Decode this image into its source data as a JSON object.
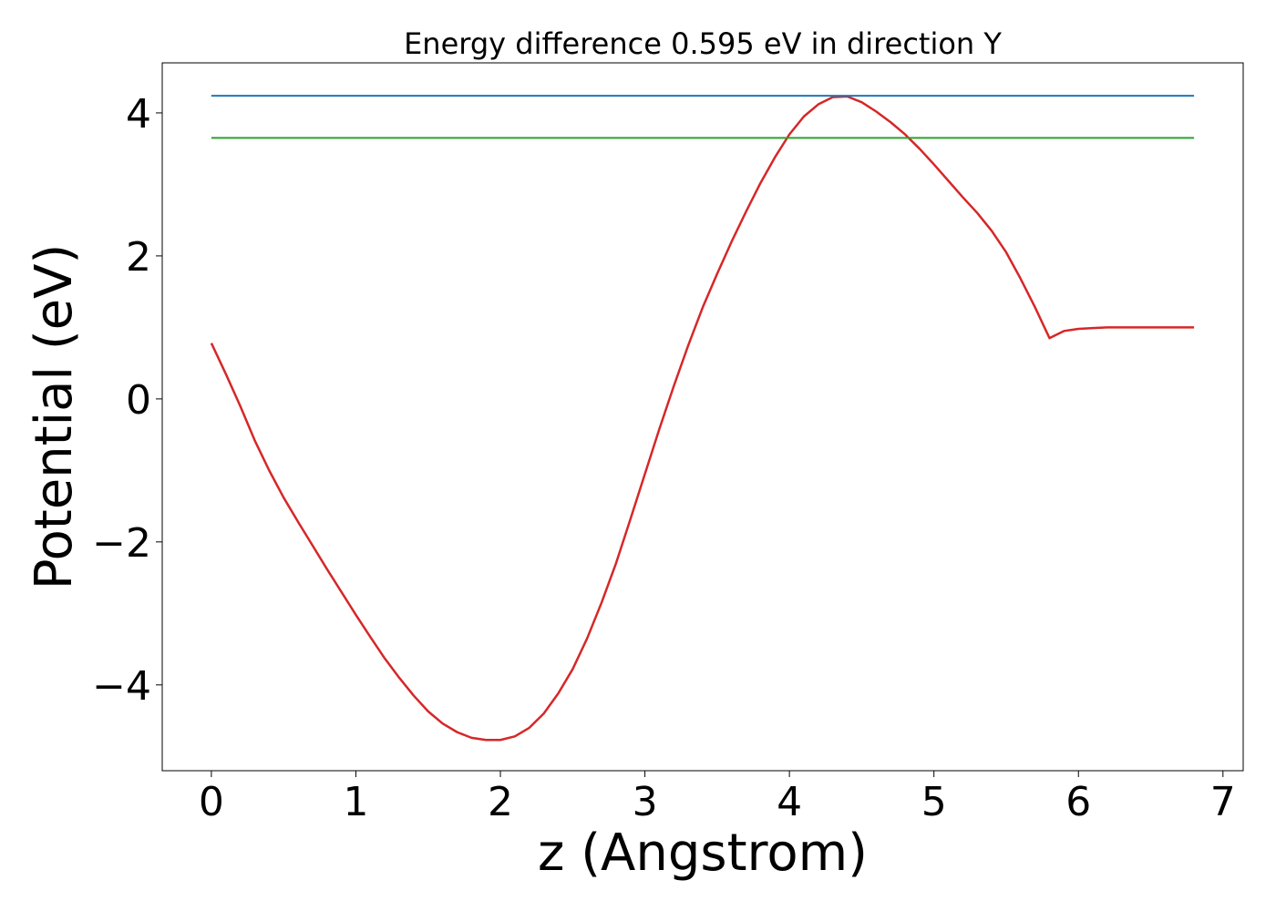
{
  "chart_data": {
    "type": "line",
    "title": "Energy difference 0.595 eV in direction Y",
    "xlabel": "z (Angstrom)",
    "ylabel": "Potential (eV)",
    "xlim": [
      -0.34,
      7.14
    ],
    "ylim": [
      -5.2,
      4.7
    ],
    "xticks": [
      0,
      1,
      2,
      3,
      4,
      5,
      6,
      7
    ],
    "xtick_labels": [
      "0",
      "1",
      "2",
      "3",
      "4",
      "5",
      "6",
      "7"
    ],
    "yticks": [
      4,
      2,
      0,
      -2,
      -4
    ],
    "ytick_labels": [
      "4",
      "2",
      "0",
      "−2",
      "−4"
    ],
    "grid": false,
    "series": [
      {
        "color": "#d62728",
        "x": [
          0.0,
          0.1,
          0.2,
          0.3,
          0.4,
          0.5,
          0.6,
          0.7,
          0.8,
          0.9,
          1.0,
          1.1,
          1.2,
          1.3,
          1.4,
          1.5,
          1.6,
          1.7,
          1.8,
          1.9,
          2.0,
          2.1,
          2.2,
          2.3,
          2.4,
          2.5,
          2.6,
          2.7,
          2.8,
          2.9,
          3.0,
          3.1,
          3.2,
          3.3,
          3.4,
          3.5,
          3.6,
          3.7,
          3.8,
          3.9,
          4.0,
          4.1,
          4.2,
          4.3,
          4.4,
          4.5,
          4.6,
          4.7,
          4.8,
          4.9,
          5.0,
          5.1,
          5.2,
          5.3,
          5.4,
          5.5,
          5.6,
          5.7,
          5.8,
          5.9,
          6.0,
          6.1,
          6.2,
          6.3,
          6.4,
          6.5,
          6.6,
          6.7,
          6.8
        ],
        "y": [
          0.78,
          0.35,
          -0.1,
          -0.58,
          -1.0,
          -1.38,
          -1.72,
          -2.05,
          -2.38,
          -2.7,
          -3.02,
          -3.33,
          -3.63,
          -3.9,
          -4.15,
          -4.37,
          -4.54,
          -4.66,
          -4.74,
          -4.77,
          -4.77,
          -4.72,
          -4.6,
          -4.4,
          -4.12,
          -3.78,
          -3.35,
          -2.85,
          -2.3,
          -1.68,
          -1.05,
          -0.42,
          0.18,
          0.75,
          1.28,
          1.75,
          2.2,
          2.62,
          3.02,
          3.38,
          3.7,
          3.95,
          4.12,
          4.22,
          4.23,
          4.15,
          4.02,
          3.87,
          3.7,
          3.5,
          3.28,
          3.05,
          2.82,
          2.6,
          2.35,
          2.05,
          1.68,
          1.28,
          0.85,
          0.95,
          0.98,
          0.99,
          1.0,
          1.0,
          1.0,
          1.0,
          1.0,
          1.0,
          1.0
        ]
      },
      {
        "color": "#1f77b4",
        "x": [
          0.0,
          6.8
        ],
        "y": [
          4.24,
          4.24
        ]
      },
      {
        "color": "#2ca02c",
        "x": [
          0.0,
          6.8
        ],
        "y": [
          3.65,
          3.65
        ]
      }
    ]
  }
}
